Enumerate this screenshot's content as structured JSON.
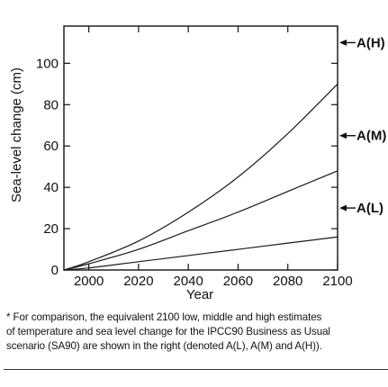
{
  "chart_data": {
    "type": "line",
    "title": "",
    "xlabel": "Year",
    "ylabel": "Sea-level change (cm)",
    "xlim": [
      1990,
      2100
    ],
    "ylim": [
      0,
      118
    ],
    "xticks": [
      2000,
      2020,
      2040,
      2060,
      2080,
      2100
    ],
    "yticks": [
      0,
      20,
      40,
      60,
      80,
      100
    ],
    "x": [
      1990,
      2000,
      2020,
      2040,
      2060,
      2080,
      2100
    ],
    "series": [
      {
        "values": [
          0,
          4,
          14,
          28,
          45,
          66,
          90
        ]
      },
      {
        "values": [
          0,
          3,
          10,
          19,
          28,
          38,
          48
        ]
      },
      {
        "values": [
          0,
          1,
          4,
          7,
          10,
          13,
          16
        ]
      }
    ],
    "annotations": [
      {
        "label": "A(H)",
        "y": 110
      },
      {
        "label": "A(M)",
        "y": 65
      },
      {
        "label": "A(L)",
        "y": 30
      }
    ],
    "grid": false
  },
  "footnote": {
    "lines": [
      "* For comparison, the equivalent 2100 low, middle and high estimates",
      "of temperature and sea level change for the IPCC90 Business as Usual",
      "scenario (SA90) are shown in the right (denoted A(L), A(M) and A(H))."
    ]
  }
}
